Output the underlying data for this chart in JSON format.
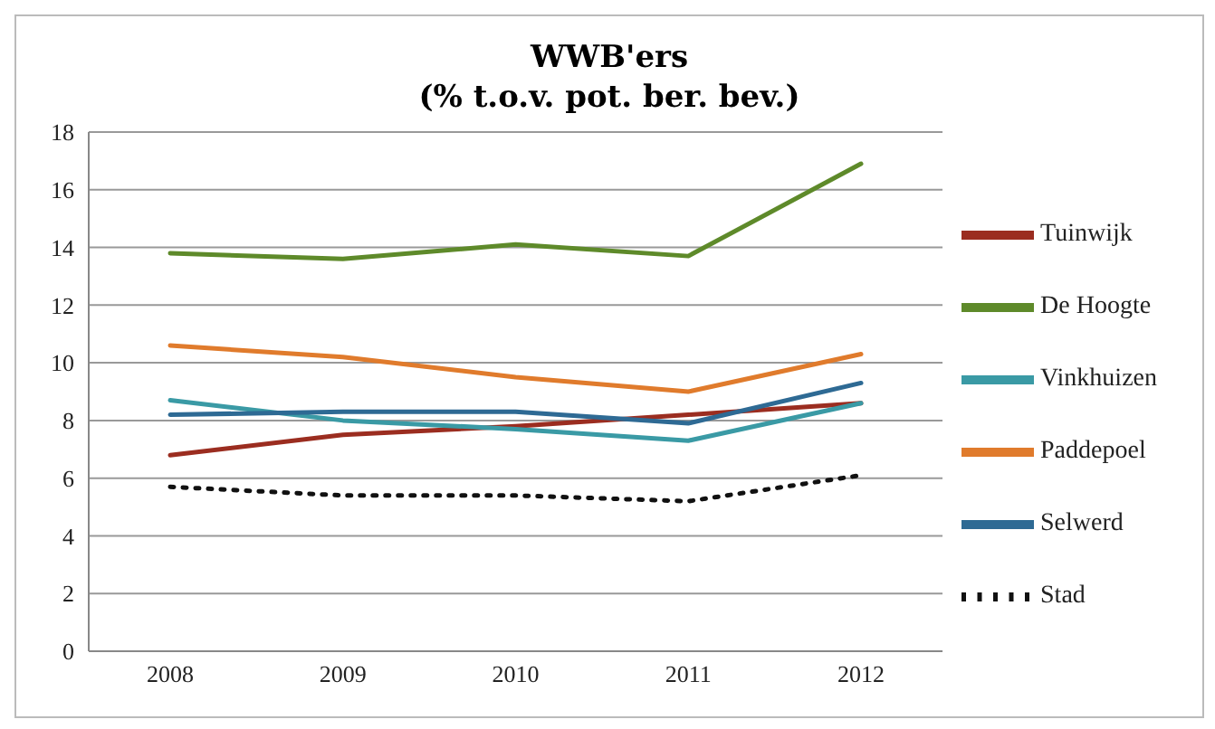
{
  "chart_data": {
    "type": "line",
    "title": "WWB'ers\n(% t.o.v. pot. ber. bev.)",
    "categories": [
      "2008",
      "2009",
      "2010",
      "2011",
      "2012"
    ],
    "series": [
      {
        "name": "Tuinwijk",
        "color": "#9b2d20",
        "values": [
          6.8,
          7.5,
          7.8,
          8.2,
          8.6
        ]
      },
      {
        "name": "De Hoogte",
        "color": "#5e8a2a",
        "values": [
          13.8,
          13.6,
          14.1,
          13.7,
          16.9
        ]
      },
      {
        "name": "Vinkhuizen",
        "color": "#3a9aa5",
        "values": [
          8.7,
          8.0,
          7.7,
          7.3,
          8.6
        ]
      },
      {
        "name": "Paddepoel",
        "color": "#e07b2c",
        "values": [
          10.6,
          10.2,
          9.5,
          9.0,
          10.3
        ]
      },
      {
        "name": "Selwerd",
        "color": "#2e6a94",
        "values": [
          8.2,
          8.3,
          8.3,
          7.9,
          9.3
        ]
      },
      {
        "name": "Stad",
        "color": "#111111",
        "line_style": "dotted",
        "values": [
          5.7,
          5.4,
          5.4,
          5.2,
          6.1
        ]
      }
    ],
    "ylim": [
      0,
      18
    ],
    "yticks": [
      0,
      2,
      4,
      6,
      8,
      10,
      12,
      14,
      16,
      18
    ],
    "grid": "y",
    "legend": "right",
    "marker": "none",
    "line_style": "solid"
  }
}
